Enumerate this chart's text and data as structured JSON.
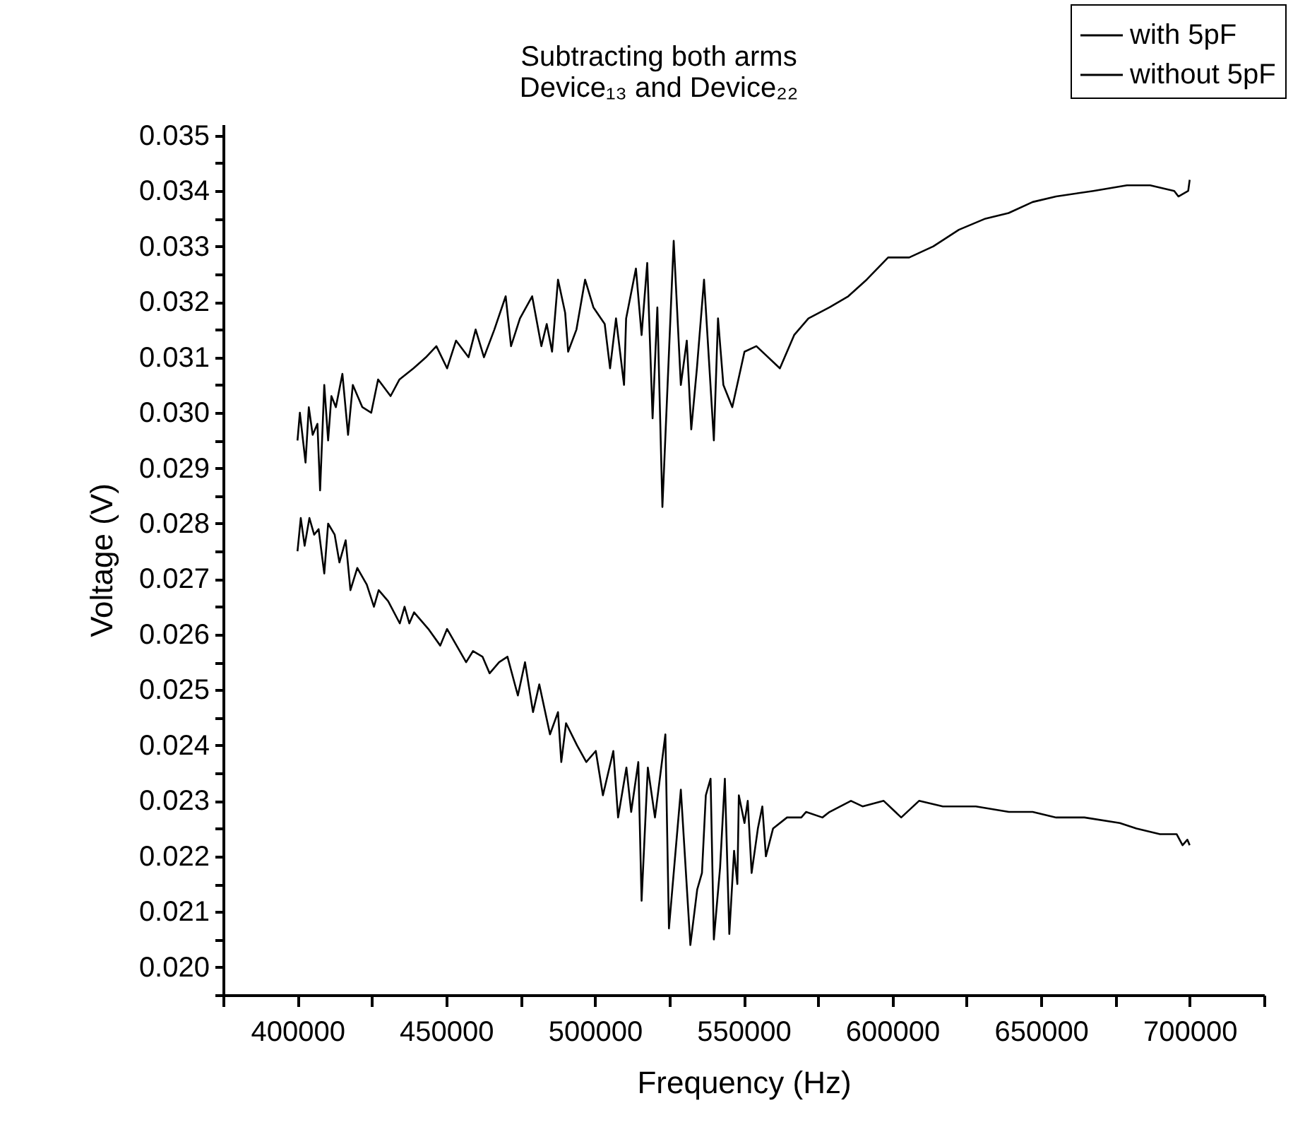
{
  "chart_data": {
    "type": "line",
    "title": [
      "Subtracting both arms",
      "Device₁₃ and Device₂₂"
    ],
    "xlabel": "Frequency (Hz)",
    "ylabel": "Voltage (V)",
    "xlim": [
      375000,
      725000
    ],
    "ylim": [
      0.0195,
      0.0352
    ],
    "xticks": [
      {
        "value": 375000,
        "label": null
      },
      400000,
      {
        "value": 425000,
        "label": null
      },
      450000,
      {
        "value": 475000,
        "label": null
      },
      500000,
      {
        "value": 525000,
        "label": null
      },
      550000,
      {
        "value": 575000,
        "label": null
      },
      600000,
      {
        "value": 625000,
        "label": null
      },
      650000,
      {
        "value": 675000,
        "label": null
      },
      700000,
      {
        "value": 725000,
        "label": null
      }
    ],
    "yticks": [
      {
        "value": 0.0195,
        "label": null
      },
      {
        "value": 0.02,
        "label": "0.020"
      },
      {
        "value": 0.0205,
        "label": null
      },
      0.021,
      {
        "value": 0.0215,
        "label": null
      },
      0.022,
      {
        "value": 0.0225,
        "label": null
      },
      0.023,
      {
        "value": 0.0235,
        "label": null
      },
      0.024,
      {
        "value": 0.0245,
        "label": null
      },
      0.025,
      {
        "value": 0.0255,
        "label": null
      },
      0.026,
      {
        "value": 0.0265,
        "label": null
      },
      0.027,
      {
        "value": 0.0275,
        "label": null
      },
      0.028,
      {
        "value": 0.0285,
        "label": null
      },
      0.029,
      {
        "value": 0.0295,
        "label": null
      },
      {
        "value": 0.03,
        "label": "0.030"
      },
      {
        "value": 0.0305,
        "label": null
      },
      0.031,
      {
        "value": 0.0315,
        "label": null
      },
      0.032,
      {
        "value": 0.0325,
        "label": null
      },
      0.033,
      {
        "value": 0.0335,
        "label": null
      },
      0.034,
      {
        "value": 0.0345,
        "label": null
      },
      0.035
    ],
    "grid": false,
    "legend": "top right",
    "marker": "none",
    "line_style": "solid",
    "series": [
      {
        "name": "with 5pF",
        "color": "#000000",
        "x": [
          400000,
          401100,
          402400,
          404000,
          405600,
          407100,
          409000,
          410300,
          412500,
          414100,
          416200,
          417800,
          420100,
          423300,
          425700,
          427300,
          430500,
          434400,
          436000,
          437600,
          439200,
          444000,
          448000,
          450300,
          456700,
          459000,
          462200,
          464600,
          467800,
          470600,
          474100,
          476500,
          479200,
          481300,
          484900,
          487600,
          488700,
          490300,
          494000,
          497100,
          500300,
          502700,
          506200,
          507800,
          510600,
          512200,
          514600,
          515700,
          517800,
          520200,
          523700,
          524900,
          528900,
          532100,
          534400,
          536000,
          537300,
          538900,
          540000,
          542100,
          543700,
          545200,
          546800,
          547900,
          548400,
          550300,
          551400,
          552700,
          554800,
          556300,
          557500,
          559900,
          564600,
          569400,
          571000,
          576500,
          578900,
          586100,
          590000,
          597100,
          603000,
          609000,
          617000,
          628100,
          639200,
          647200,
          655100,
          664600,
          676500,
          682100,
          690000,
          695600,
          697600,
          699200,
          700000
        ],
        "values": [
          0.0275,
          0.0281,
          0.0276,
          0.0281,
          0.0278,
          0.0279,
          0.0271,
          0.028,
          0.0278,
          0.0273,
          0.0277,
          0.0268,
          0.0272,
          0.0269,
          0.0265,
          0.0268,
          0.0266,
          0.0262,
          0.0265,
          0.0262,
          0.0264,
          0.0261,
          0.0258,
          0.0261,
          0.0255,
          0.0257,
          0.0256,
          0.0253,
          0.0255,
          0.0256,
          0.0249,
          0.0255,
          0.0246,
          0.0251,
          0.0242,
          0.0246,
          0.0237,
          0.0244,
          0.024,
          0.0237,
          0.0239,
          0.0231,
          0.0239,
          0.0227,
          0.0236,
          0.0228,
          0.0237,
          0.0212,
          0.0236,
          0.0227,
          0.0242,
          0.0207,
          0.0232,
          0.0204,
          0.0214,
          0.0217,
          0.0231,
          0.0234,
          0.0205,
          0.0218,
          0.0234,
          0.0206,
          0.0221,
          0.0215,
          0.0231,
          0.0226,
          0.023,
          0.0217,
          0.0225,
          0.0229,
          0.022,
          0.0225,
          0.0227,
          0.0227,
          0.0228,
          0.0227,
          0.0228,
          0.023,
          0.0229,
          0.023,
          0.0227,
          0.023,
          0.0229,
          0.0229,
          0.0228,
          0.0228,
          0.0227,
          0.0227,
          0.0226,
          0.0225,
          0.0224,
          0.0224,
          0.0222,
          0.0223,
          0.0222
        ]
      },
      {
        "name": "without 5pF",
        "color": "#000000",
        "x": [
          400000,
          400800,
          402700,
          403800,
          405100,
          406700,
          407600,
          409000,
          410300,
          411400,
          412900,
          415100,
          417000,
          418600,
          421800,
          424800,
          427100,
          431300,
          434300,
          439000,
          443200,
          446700,
          450300,
          453300,
          457500,
          459900,
          462700,
          466200,
          470000,
          471800,
          474800,
          478900,
          482000,
          483800,
          485600,
          487600,
          490000,
          491000,
          493800,
          496700,
          499500,
          503300,
          505100,
          507100,
          509800,
          510500,
          513800,
          515700,
          517600,
          519400,
          521000,
          522700,
          526500,
          528900,
          530900,
          532400,
          534300,
          536700,
          540000,
          541400,
          543200,
          546200,
          550300,
          554300,
          562200,
          567000,
          571800,
          578900,
          585200,
          591400,
          598600,
          605700,
          613800,
          622400,
          631300,
          639100,
          647200,
          655100,
          667600,
          678900,
          686700,
          694800,
          696200,
          699500,
          700000
        ],
        "values": [
          0.0295,
          0.03,
          0.0291,
          0.0301,
          0.0296,
          0.0298,
          0.0286,
          0.0305,
          0.0295,
          0.0303,
          0.0301,
          0.0307,
          0.0296,
          0.0305,
          0.0301,
          0.03,
          0.0306,
          0.0303,
          0.0306,
          0.0308,
          0.031,
          0.0312,
          0.0308,
          0.0313,
          0.031,
          0.0315,
          0.031,
          0.0315,
          0.0321,
          0.0312,
          0.0317,
          0.0321,
          0.0312,
          0.0316,
          0.0311,
          0.0324,
          0.0318,
          0.0311,
          0.0315,
          0.0324,
          0.0319,
          0.0316,
          0.0308,
          0.0317,
          0.0305,
          0.0317,
          0.0326,
          0.0314,
          0.0327,
          0.0299,
          0.0319,
          0.0283,
          0.0331,
          0.0305,
          0.0313,
          0.0297,
          0.0308,
          0.0324,
          0.0295,
          0.0317,
          0.0305,
          0.0301,
          0.0311,
          0.0312,
          0.0308,
          0.0314,
          0.0317,
          0.0319,
          0.0321,
          0.0324,
          0.0328,
          0.0328,
          0.033,
          0.0333,
          0.0335,
          0.0336,
          0.0338,
          0.0339,
          0.034,
          0.0341,
          0.0341,
          0.034,
          0.0339,
          0.034,
          0.0342
        ]
      }
    ]
  }
}
